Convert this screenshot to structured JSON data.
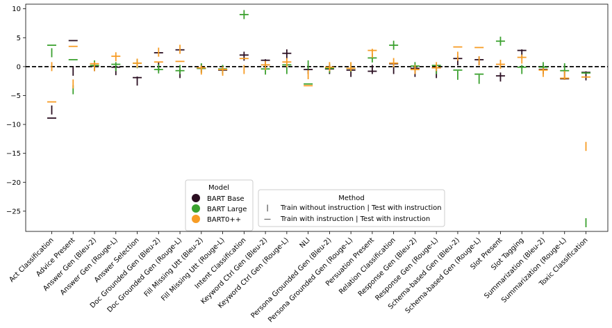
{
  "chart_data": {
    "type": "scatter",
    "title": "",
    "xlabel": "",
    "ylabel": "",
    "ylim": [
      -28.5,
      10.8
    ],
    "yticks": [
      10,
      5,
      0,
      -5,
      -10,
      -15,
      -20,
      -25
    ],
    "ytick_labels": [
      "10",
      "5",
      "0",
      "−5",
      "−10",
      "−15",
      "−20",
      "−25"
    ],
    "grid": false,
    "reference_line": {
      "y": 0,
      "style": "dashed",
      "color": "#000000"
    },
    "categories": [
      "Act Classification",
      "Advice Present",
      "Answer Gen (Bleu-2)",
      "Answer Gen (Rouge-L)",
      "Answer Selection",
      "Doc Grounded Gen (Bleu-2)",
      "Doc Grounded Gen (Rouge-L)",
      "Fill Missing Utt (Bleu-2)",
      "Fill Missing Utt (Rouge-L)",
      "Intent Classification",
      "Keyword Ctrl Gen (Bleu-2)",
      "Keyword Ctrl Gen (Rouge-L)",
      "NLI",
      "Persona Grounded Gen (Bleu-2)",
      "Persona Grounded Gen (Rouge-L)",
      "Persuation Present",
      "Relation Classification",
      "Response Gen (Bleu-2)",
      "Response Gen (Rouge-L)",
      "Schema-based Gen (Bleu-2)",
      "Schema-based Gen (Rouge-L)",
      "Slot Present",
      "Slot Tagging",
      "Summarization (Bleu-2)",
      "Summarization (Rouge-L)",
      "Toxic Classification"
    ],
    "series": [
      {
        "name": "BART Base",
        "color": "#2b0f22",
        "train_without_instruction": [
          -7.5,
          -0.8,
          0.0,
          -0.7,
          -2.5,
          0.0,
          -1.2,
          -0.3,
          -0.5,
          1.8,
          0.5,
          2.2,
          -0.5,
          -0.5,
          -1.0,
          -0.5,
          -0.5,
          -1.0,
          -1.2,
          1.0,
          1.0,
          -1.8,
          2.2,
          -0.5,
          -1.5,
          -1.6
        ],
        "train_with_instruction": [
          -8.9,
          4.5,
          0.1,
          -0.1,
          -1.9,
          2.4,
          2.9,
          -0.3,
          -0.6,
          2.0,
          1.1,
          2.3,
          -0.5,
          -0.4,
          -0.6,
          -0.8,
          0.5,
          -0.3,
          -0.2,
          1.4,
          1.2,
          -1.6,
          2.8,
          -0.5,
          -2.1,
          -1.0
        ]
      },
      {
        "name": "BART Large",
        "color": "#3ba12f",
        "train_without_instruction": [
          2.4,
          -4.0,
          0.3,
          0.0,
          0.5,
          -0.4,
          -0.5,
          -0.2,
          -0.5,
          9.0,
          -0.6,
          -0.5,
          0.3,
          -0.3,
          -0.1,
          1.5,
          3.7,
          0.0,
          -0.5,
          -1.5,
          -2.2,
          4.4,
          -0.5,
          0.0,
          -0.2,
          -27.0
        ],
        "train_with_instruction": [
          3.7,
          1.2,
          0.2,
          0.4,
          0.6,
          -0.5,
          -0.7,
          -0.3,
          -0.4,
          9.0,
          -0.4,
          0.3,
          -3.0,
          -0.3,
          -0.3,
          1.5,
          3.7,
          0.1,
          0.2,
          -0.6,
          -1.3,
          4.4,
          -0.1,
          -0.1,
          -0.7,
          -1.1
        ]
      },
      {
        "name": "BART0++",
        "color": "#f79c25",
        "train_without_instruction": [
          0.0,
          -3.0,
          0.0,
          1.7,
          0.6,
          2.5,
          3.0,
          -0.6,
          -0.8,
          -0.5,
          0.2,
          0.7,
          -1.4,
          0.0,
          0.0,
          2.3,
          0.7,
          -0.5,
          0.0,
          1.8,
          1.0,
          0.4,
          1.3,
          -1.0,
          -1.5,
          -13.8
        ],
        "train_with_instruction": [
          -6.1,
          3.5,
          0.5,
          1.8,
          0.6,
          0.8,
          0.9,
          -0.2,
          -0.5,
          1.4,
          0.3,
          0.8,
          -3.3,
          -0.1,
          -0.3,
          2.8,
          0.6,
          -0.5,
          -0.2,
          3.4,
          3.3,
          0.4,
          1.6,
          -0.6,
          -2.0,
          -1.8
        ]
      }
    ],
    "legends": {
      "model": {
        "title": "Model",
        "entries": [
          "BART Base",
          "BART Large",
          "BART0++"
        ],
        "placement": "lower-center-left"
      },
      "method": {
        "title": "Method",
        "entries": [
          {
            "marker": "|",
            "label": "Train without instruction | Test with instruction"
          },
          {
            "marker": "—",
            "label": "Train with instruction | Test with instruction"
          }
        ],
        "placement": "lower-center"
      }
    }
  }
}
